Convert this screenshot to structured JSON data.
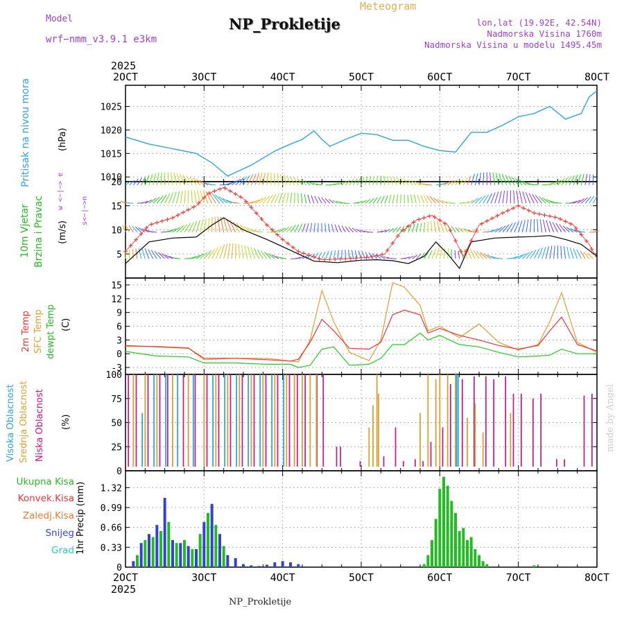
{
  "header": {
    "model_label": "Model",
    "model_name": "wrf−nmm_v3.9.1  e3km",
    "title": "NP_Prokletije",
    "subtitle": "Meteogram",
    "lonlat": "lon,lat (19.92E, 42.54N)",
    "elevation": "Nadmorska Visina 1760m",
    "model_elevation": "Nadmorska Visina u modelu 1495.45m"
  },
  "footer": {
    "station": "NP_Prokletije",
    "watermark": "made by Angel"
  },
  "time_axis": {
    "year": "2025",
    "ticks": [
      "2OCT",
      "3OCT",
      "4OCT",
      "5OCT",
      "6OCT",
      "7OCT",
      "8OCT"
    ]
  },
  "panels": {
    "pressure": {
      "label": "Pritisak na nivou mora",
      "unit": "(hPa)"
    },
    "wind": {
      "label1": "10m Vjetar",
      "label2": "Brzina i Pravac",
      "unit": "(m/s)",
      "dir_key": "w <−|−> e",
      "dir_key2": "s<−|−>n"
    },
    "temp": {
      "label1": "2m Temp",
      "label2": "SFC Temp",
      "label3": "dewpt Temp",
      "unit": "(C)"
    },
    "cloud": {
      "label1": "Visoka Oblacnost",
      "label2": "Srednja Oblacnost",
      "label3": "Niska Oblacnost",
      "unit": "(%)"
    },
    "precip": {
      "unit": "1hr Precip (mm)",
      "legend": [
        "Ukupna Kisa",
        "Konvek.Kisa",
        "Zaledj.Kisa",
        "Snijeg",
        "Grad"
      ]
    }
  },
  "colors": {
    "pressure": "#2aa5e0",
    "wind_speed": "#000000",
    "wind_gust": "#ee3333",
    "temp2m": "#ee3333",
    "sfc": "#d9a030",
    "dewpt": "#22cc22",
    "cloud_high": "#2aa5e0",
    "cloud_mid": "#d9a030",
    "cloud_low": "#c02090",
    "rain": "#22bb22",
    "conv": "#ee3333",
    "frz": "#ee7733",
    "snow": "#3344cc",
    "hail": "#22cccc",
    "label_green": "#22bb22",
    "label_red": "#ee3333",
    "label_orange": "#ee7733",
    "label_blue": "#3344dd",
    "label_cyan": "#22cccc",
    "label_mid": "#e0a030",
    "label_low": "#d01080"
  },
  "chart_data": [
    {
      "type": "line",
      "title": "Pritisak na nivou mora",
      "ylabel": "(hPa)",
      "ylim": [
        1009,
        1029.5
      ],
      "yticks": [
        1010,
        1015,
        1020,
        1025
      ],
      "x_days": [
        2,
        2.3,
        2.6,
        2.9,
        3.1,
        3.3,
        3.6,
        3.9,
        4.1,
        4.25,
        4.4,
        4.5,
        4.6,
        4.8,
        5.0,
        5.2,
        5.4,
        5.6,
        5.8,
        6.0,
        6.2,
        6.4,
        6.6,
        6.8,
        7.0,
        7.2,
        7.4,
        7.6,
        7.8,
        7.9,
        8.0
      ],
      "values": [
        1018.5,
        1017,
        1016,
        1015,
        1013,
        1010.2,
        1012.5,
        1015.5,
        1017,
        1018,
        1019.8,
        1018,
        1016.5,
        1018,
        1019.3,
        1019,
        1017.8,
        1017.8,
        1016.5,
        1015.6,
        1015.3,
        1019.5,
        1019.5,
        1021,
        1022.8,
        1023.5,
        1025,
        1022.3,
        1023.5,
        1027,
        1028.3
      ]
    },
    {
      "type": "line",
      "title": "10m Vjetar Brzina i Pravac",
      "ylabel": "(m/s)",
      "ylim": [
        0,
        20
      ],
      "yticks": [
        5,
        10,
        15,
        20
      ],
      "series": [
        {
          "name": "speed",
          "x_days": [
            2,
            2.3,
            2.6,
            2.9,
            3.1,
            3.25,
            3.5,
            3.8,
            4.0,
            4.2,
            4.4,
            4.7,
            5.0,
            5.2,
            5.4,
            5.6,
            5.8,
            5.95,
            6.1,
            6.25,
            6.4,
            6.7,
            7.0,
            7.2,
            7.4,
            7.6,
            7.8,
            8.0
          ],
          "values": [
            3,
            7.5,
            8.3,
            8.5,
            11,
            12.5,
            10,
            8,
            6.5,
            5,
            3.5,
            3.2,
            3.7,
            3.8,
            3.6,
            3,
            4.5,
            7.5,
            5,
            2,
            7.5,
            8.3,
            8.5,
            8.6,
            8.8,
            8,
            7,
            4.5
          ]
        },
        {
          "name": "gust",
          "x_days": [
            2,
            2.3,
            2.6,
            2.9,
            3.05,
            3.25,
            3.5,
            3.8,
            4.0,
            4.2,
            4.5,
            4.8,
            5.1,
            5.3,
            5.5,
            5.7,
            5.9,
            6.1,
            6.3,
            6.5,
            6.8,
            7.0,
            7.2,
            7.5,
            7.7,
            7.9,
            8.0
          ],
          "values": [
            5.5,
            11,
            12.5,
            15,
            17.5,
            18.8,
            16.5,
            11,
            8,
            5.5,
            3.8,
            4,
            4.3,
            5,
            9.5,
            12,
            13,
            11,
            4.5,
            11,
            13.5,
            15,
            13.5,
            12.5,
            11,
            7,
            4
          ]
        }
      ]
    },
    {
      "type": "line",
      "title": "2m Temp / SFC Temp / dewpt Temp",
      "ylabel": "(C)",
      "ylim": [
        -4.5,
        16.5
      ],
      "yticks": [
        -3,
        0,
        3,
        6,
        9,
        12,
        15
      ],
      "x_days": [
        2,
        2.4,
        2.8,
        3.0,
        3.4,
        3.8,
        4.1,
        4.2,
        4.35,
        4.5,
        4.65,
        4.85,
        5.1,
        5.25,
        5.4,
        5.55,
        5.75,
        5.85,
        6.0,
        6.25,
        6.5,
        6.75,
        7.0,
        7.25,
        7.4,
        7.55,
        7.75,
        8.0
      ],
      "series": [
        {
          "name": "2m Temp",
          "values": [
            1.8,
            1.5,
            1.2,
            -1.0,
            -1.0,
            -1.3,
            -1.6,
            -1.2,
            2.5,
            7.5,
            5,
            1.2,
            1.0,
            2.5,
            8.5,
            9.5,
            8.5,
            4.5,
            5.5,
            4,
            3,
            1.8,
            1.0,
            1.8,
            5,
            8,
            2,
            0.6
          ]
        },
        {
          "name": "SFC Temp",
          "values": [
            1.6,
            1.6,
            1.3,
            -1.3,
            -1.0,
            -1.0,
            -1.6,
            -1.8,
            3,
            13.8,
            7,
            0.3,
            -1.5,
            3,
            15.5,
            14.5,
            10.5,
            5,
            6,
            3.5,
            6.5,
            2.5,
            0.8,
            2,
            7,
            13.3,
            2.5,
            0.3
          ]
        },
        {
          "name": "dewpt Temp",
          "values": [
            0.5,
            -0.5,
            -0.7,
            -2.0,
            -2.0,
            -2.3,
            -2.3,
            -3.0,
            -2.5,
            1.0,
            1.5,
            -2.5,
            -2.3,
            -1.0,
            2.0,
            2.0,
            4.5,
            3,
            4,
            2,
            1.5,
            0.3,
            -0.7,
            -0.5,
            -0.3,
            1.0,
            0,
            0
          ]
        }
      ]
    },
    {
      "type": "bar",
      "title": "Visoka / Srednja / Niska Oblacnost",
      "ylabel": "(%)",
      "ylim": [
        0,
        100
      ],
      "yticks": [
        0,
        25,
        50,
        75,
        100
      ],
      "series": [
        {
          "name": "Niska Oblacnost",
          "x_days": [
            2.05,
            2.15,
            2.3,
            2.45,
            2.55,
            2.75,
            2.9,
            3.05,
            3.2,
            3.35,
            3.5,
            3.65,
            3.8,
            3.95,
            4.1,
            4.2,
            4.3,
            4.45,
            4.53,
            4.7,
            4.75,
            5.0,
            5.3,
            5.45,
            5.55,
            5.7,
            5.8,
            5.9,
            6.05,
            6.15,
            6.3,
            6.45,
            6.6,
            6.7,
            6.85,
            6.95,
            7.05,
            7.2,
            7.3,
            7.5,
            7.6,
            7.85,
            7.95
          ],
          "values": [
            100,
            100,
            100,
            100,
            100,
            100,
            100,
            100,
            100,
            100,
            100,
            100,
            100,
            100,
            100,
            100,
            100,
            100,
            100,
            25,
            25,
            10,
            15,
            45,
            10,
            12,
            10,
            30,
            45,
            90,
            95,
            98,
            98,
            95,
            98,
            80,
            80,
            75,
            80,
            12,
            12,
            78,
            80
          ]
        },
        {
          "name": "Srednja Oblacnost",
          "x_days": [
            2.1,
            2.25,
            2.4,
            2.6,
            2.8,
            3.0,
            3.15,
            3.3,
            3.45,
            3.6,
            3.75,
            3.9,
            4.05,
            4.15,
            4.25,
            4.35,
            4.43,
            5.1,
            5.15,
            5.2,
            5.22,
            5.75,
            5.85,
            5.95,
            6.0,
            6.1,
            6.2,
            6.35,
            6.45,
            6.55,
            6.9
          ],
          "values": [
            100,
            100,
            100,
            100,
            100,
            100,
            100,
            100,
            100,
            100,
            100,
            100,
            100,
            100,
            100,
            100,
            100,
            45,
            68,
            100,
            80,
            60,
            100,
            95,
            100,
            100,
            100,
            55,
            70,
            40,
            60
          ]
        },
        {
          "name": "Visoka Oblacnost",
          "x_days": [
            2.2,
            2.35,
            2.5,
            2.65,
            2.85,
            3.1,
            3.25,
            3.4,
            3.55,
            3.7,
            3.85,
            4.0,
            6.2,
            6.22
          ],
          "values": [
            60,
            100,
            100,
            100,
            100,
            100,
            100,
            100,
            100,
            100,
            100,
            100,
            100,
            100
          ]
        }
      ]
    },
    {
      "type": "bar",
      "title": "1hr Precip",
      "ylabel": "1hr Precip (mm)",
      "ylim": [
        0,
        1.6
      ],
      "yticks": [
        0,
        0.33,
        0.66,
        0.99,
        1.32
      ],
      "series": [
        {
          "name": "Snijeg",
          "x_days": [
            2.1,
            2.2,
            2.3,
            2.4,
            2.5,
            2.6,
            2.7,
            2.8,
            2.9,
            3.0,
            3.1,
            3.2,
            3.3,
            3.4,
            3.5,
            3.6,
            3.7,
            3.8,
            3.9,
            4.0,
            4.1,
            4.2
          ],
          "values": [
            0.1,
            0.4,
            0.55,
            0.7,
            1.15,
            0.45,
            0.4,
            0.35,
            0.3,
            0.75,
            1.05,
            0.55,
            0.2,
            0.15,
            0.05,
            0.03,
            0.02,
            0.04,
            0.08,
            0.1,
            0.08,
            0.05
          ]
        },
        {
          "name": "Ukupna Kisa",
          "x_days": [
            2.15,
            2.25,
            2.35,
            2.45,
            2.55,
            2.65,
            2.75,
            2.85,
            2.95,
            3.05,
            3.15,
            3.25,
            5.8,
            5.85,
            5.9,
            5.95,
            6.0,
            6.05,
            6.1,
            6.15,
            6.2,
            6.25,
            6.3,
            6.35,
            6.4,
            6.45,
            6.5,
            6.55,
            6.6,
            7.2
          ],
          "values": [
            0.2,
            0.45,
            0.5,
            0.6,
            0.75,
            0.4,
            0.45,
            0.3,
            0.55,
            0.9,
            0.7,
            0.35,
            0.05,
            0.2,
            0.45,
            0.8,
            1.3,
            1.5,
            1.35,
            1.1,
            0.9,
            0.6,
            0.65,
            0.45,
            0.5,
            0.3,
            0.2,
            0.1,
            0.05,
            0.03
          ]
        }
      ]
    }
  ]
}
